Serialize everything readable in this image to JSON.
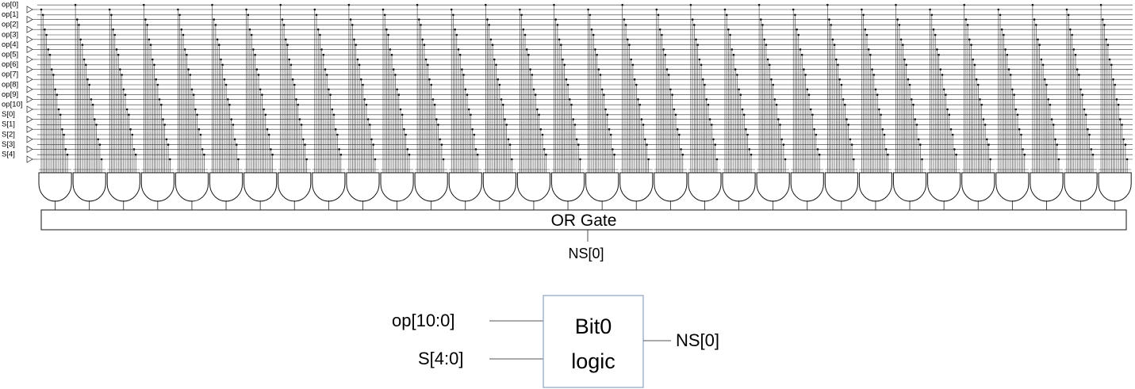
{
  "schematic": {
    "inputs": [
      "op[0]",
      "op[1]",
      "op[2]",
      "op[3]",
      "op[4]",
      "op[5]",
      "op[6]",
      "op[7]",
      "op[8]",
      "op[9]",
      "op[10]",
      "S[0]",
      "S[1]",
      "S[2]",
      "S[3]",
      "S[4]"
    ],
    "and_gate_count": 32,
    "or_gate_label": "OR Gate",
    "output_label": "NS[0]"
  },
  "block": {
    "input_top": "op[10:0]",
    "input_bottom": "S[4:0]",
    "title_line1": "Bit0",
    "title_line2": "logic",
    "output": "NS[0]",
    "border_color": "#8aa3c0"
  }
}
